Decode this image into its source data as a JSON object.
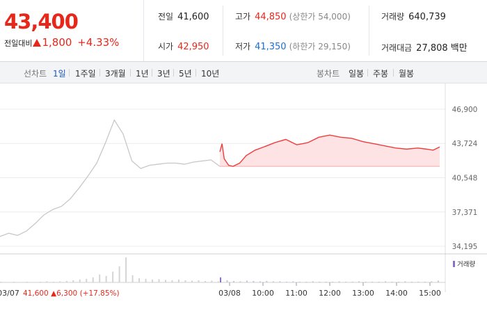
{
  "price": {
    "current": "43,400",
    "change_label": "전일대비",
    "change_amount": "1,800",
    "change_pct": "+4.33%"
  },
  "stats": {
    "prev_close": {
      "label": "전일",
      "value": "41,600"
    },
    "open": {
      "label": "시가",
      "value": "42,950"
    },
    "high": {
      "label": "고가",
      "value": "44,850",
      "limit_label": "(상한가 54,000)"
    },
    "low": {
      "label": "저가",
      "value": "41,350",
      "limit_label": "(하한가 29,150)"
    },
    "volume": {
      "label": "거래량",
      "value": "640,739"
    },
    "trade_value": {
      "label": "거래대금",
      "value": "27,808 백만"
    }
  },
  "period_bar": {
    "line_chart_label": "선차트",
    "line_periods": [
      "1일",
      "1주일",
      "3개월",
      "1년",
      "3년",
      "5년",
      "10년"
    ],
    "active_period": "1일",
    "candle_chart_label": "봉차트",
    "candle_periods": [
      "일봉",
      "주봉",
      "월봉"
    ]
  },
  "colors": {
    "up": "#e8271b",
    "down": "#1a6fd1",
    "prev_day_line": "#c8c8c8",
    "today_line": "#f03c3c",
    "today_fill": "#fde3e3",
    "volume_legend": "#8a70c7"
  },
  "chart_data": {
    "type": "line",
    "y_ticks": [
      "46,900",
      "43,724",
      "40,548",
      "37,371",
      "34,195"
    ],
    "y_tick_values": [
      46900,
      43724,
      40548,
      37371,
      34195
    ],
    "x_ticks": [
      "03/07",
      "03/08",
      "10:00",
      "11:00",
      "12:00",
      "13:00",
      "14:00",
      "15:00"
    ],
    "prev_day_summary": {
      "price": "41,600",
      "change": "6,300",
      "pct": "(+17.85%)"
    },
    "volume_legend": "거래량",
    "series": [
      {
        "name": "03/07",
        "x": [
          0,
          4,
          8,
          12,
          16,
          20,
          24,
          28,
          32,
          36,
          40,
          44,
          48,
          52,
          56,
          60,
          64,
          68,
          72,
          76,
          80,
          84,
          88,
          92,
          96,
          100
        ],
        "values": [
          35100,
          35400,
          35200,
          35600,
          36300,
          37100,
          37600,
          37900,
          38600,
          39600,
          40700,
          41900,
          43800,
          45900,
          44600,
          42100,
          41400,
          41700,
          41800,
          41900,
          41900,
          41800,
          42000,
          42100,
          42200,
          41600
        ]
      },
      {
        "name": "03/08",
        "x": [
          0,
          1,
          2,
          4,
          6,
          9,
          12,
          16,
          20,
          25,
          30,
          35,
          40,
          45,
          50,
          55,
          60,
          65,
          70,
          75,
          80,
          85,
          90,
          94,
          97,
          100
        ],
        "values": [
          42950,
          43700,
          42300,
          41700,
          41600,
          41900,
          42600,
          43100,
          43400,
          43800,
          44100,
          43600,
          43800,
          44300,
          44500,
          44300,
          44200,
          43900,
          43700,
          43500,
          43300,
          43200,
          43300,
          43200,
          43100,
          43400
        ]
      }
    ],
    "volume": {
      "name": "거래량",
      "x": [
        0,
        3,
        6,
        9,
        12,
        15,
        18,
        21,
        24,
        27,
        30,
        33,
        36,
        39,
        42,
        45,
        48,
        51,
        54,
        57,
        60,
        63,
        66,
        69,
        72,
        75,
        78,
        81,
        84,
        87,
        90,
        93,
        96,
        99
      ],
      "values": [
        2,
        1,
        2,
        1,
        2,
        1,
        2,
        3,
        2,
        3,
        4,
        6,
        8,
        10,
        14,
        22,
        18,
        30,
        45,
        70,
        20,
        12,
        10,
        8,
        9,
        7,
        6,
        8,
        6,
        5,
        6,
        4,
        5,
        3
      ],
      "today_values": [
        14,
        6,
        4,
        3,
        5,
        4,
        3,
        4,
        3,
        3,
        2,
        3,
        2,
        2,
        3,
        2,
        2,
        2,
        3,
        2,
        2,
        3,
        2,
        2,
        2,
        3,
        2,
        2,
        3,
        2,
        2,
        2,
        3,
        5
      ]
    }
  }
}
